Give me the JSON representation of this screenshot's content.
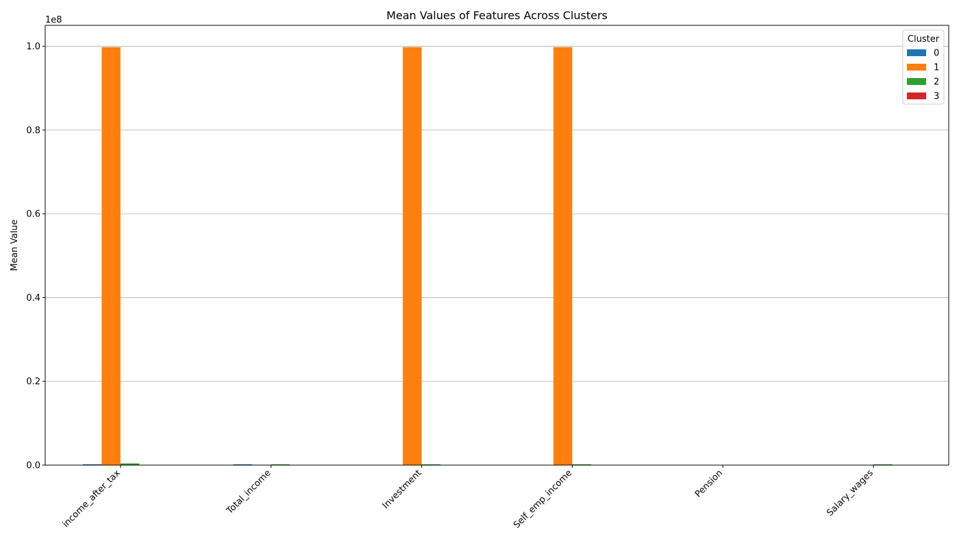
{
  "chart_data": {
    "type": "bar",
    "title": "Mean Values of Features Across Clusters",
    "xlabel": "",
    "ylabel": "Mean Value",
    "y_scale_label": "1e8",
    "ylim": [
      0,
      1.05
    ],
    "yticks": [
      0.0,
      0.2,
      0.4,
      0.6,
      0.8,
      1.0
    ],
    "ytick_labels": [
      "0.0",
      "0.2",
      "0.4",
      "0.6",
      "0.8",
      "1.0"
    ],
    "grid": "y",
    "legend": {
      "title": "Cluster",
      "placement": "top-right"
    },
    "categories": [
      "income_after_tax",
      "Total_income",
      "Investment",
      "Self_emp_income",
      "Pension",
      "Salary_wages"
    ],
    "series": [
      {
        "name": "0",
        "color": "#1f77b4",
        "values": [
          0.002,
          0.002,
          0.0003,
          0.0003,
          0.0002,
          0.0003
        ]
      },
      {
        "name": "1",
        "color": "#ff7f0e",
        "values": [
          0.998,
          0.001,
          0.998,
          0.998,
          0.0,
          0.0
        ]
      },
      {
        "name": "2",
        "color": "#2ca02c",
        "values": [
          0.004,
          0.002,
          0.002,
          0.002,
          0.0002,
          0.002
        ]
      },
      {
        "name": "3",
        "color": "#d62728",
        "values": [
          0.0003,
          0.0002,
          0.0001,
          0.0001,
          0.0001,
          0.0002
        ]
      }
    ]
  }
}
